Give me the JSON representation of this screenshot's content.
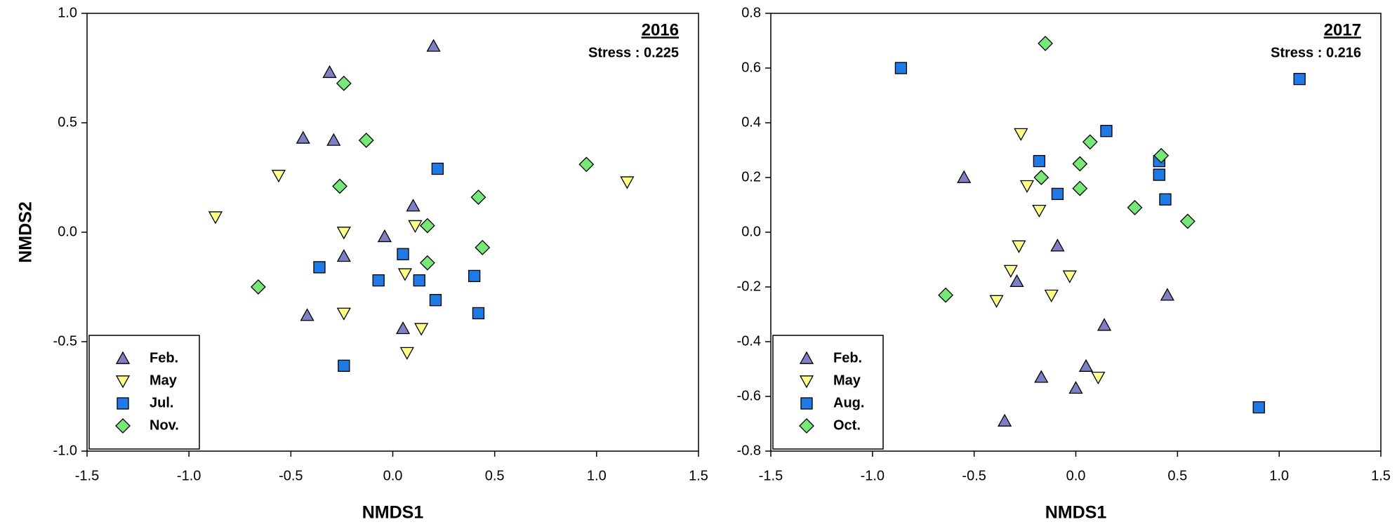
{
  "chart_data": [
    {
      "type": "scatter",
      "title": "2016",
      "subtitle": "Stress : 0.225",
      "x_label": "NMDS1",
      "y_label": "NMDS2",
      "xlim": [
        -1.5,
        1.5
      ],
      "ylim": [
        -1,
        1
      ],
      "xticks": [
        -1.5,
        {
          "value": -1,
          "label": "-1.0"
        },
        -0.5,
        {
          "value": 0,
          "label": "0.0"
        },
        0.5,
        {
          "value": 1,
          "label": "1.0"
        },
        1.5
      ],
      "yticks": [
        {
          "value": -1,
          "label": "-1.0"
        },
        -0.5,
        {
          "value": 0,
          "label": "0.0"
        },
        0.5,
        {
          "value": 1,
          "label": "1.0"
        }
      ],
      "legend": "lower left",
      "series": [
        {
          "name": "Feb.",
          "color": "#7f7fc4",
          "marker": "triangle-up",
          "x": [
            0.2,
            -0.31,
            -0.44,
            -0.29,
            0.1,
            -0.04,
            -0.24,
            -0.42,
            0.05
          ],
          "values": [
            0.85,
            0.73,
            0.43,
            0.42,
            0.12,
            -0.02,
            -0.11,
            -0.38,
            -0.44
          ]
        },
        {
          "name": "May",
          "color": "#ffff88",
          "marker": "triangle-down",
          "x": [
            -0.87,
            -0.56,
            -0.24,
            0.11,
            0.06,
            -0.24,
            0.14,
            0.07,
            1.15
          ],
          "values": [
            0.07,
            0.26,
            0.0,
            0.03,
            -0.19,
            -0.37,
            -0.44,
            -0.55,
            0.23
          ]
        },
        {
          "name": "Jul.",
          "color": "#1f7ae6",
          "marker": "square",
          "x": [
            0.22,
            -0.36,
            0.05,
            -0.07,
            0.13,
            0.21,
            0.4,
            0.42,
            -0.24
          ],
          "values": [
            0.29,
            -0.16,
            -0.1,
            -0.22,
            -0.22,
            -0.31,
            -0.2,
            -0.37,
            -0.61
          ]
        },
        {
          "name": "Nov.",
          "color": "#77e877",
          "marker": "diamond",
          "x": [
            -0.24,
            -0.13,
            -0.26,
            0.95,
            0.42,
            0.17,
            0.17,
            0.44,
            -0.66
          ],
          "values": [
            0.68,
            0.42,
            0.21,
            0.31,
            0.16,
            0.03,
            -0.14,
            -0.07,
            -0.25
          ]
        }
      ]
    },
    {
      "type": "scatter",
      "title": "2017",
      "subtitle": "Stress : 0.216",
      "x_label": "NMDS1",
      "xlim": [
        -1.5,
        1.5
      ],
      "ylim": [
        -0.8,
        0.8
      ],
      "xticks": [
        -1.5,
        {
          "value": -1,
          "label": "-1.0"
        },
        -0.5,
        {
          "value": 0,
          "label": "0.0"
        },
        0.5,
        {
          "value": 1,
          "label": "1.0"
        },
        1.5
      ],
      "yticks": [
        -0.8,
        -0.6,
        -0.4,
        -0.2,
        {
          "value": 0,
          "label": "0.0"
        },
        0.2,
        0.4,
        0.6,
        0.8
      ],
      "legend": "lower left",
      "series": [
        {
          "name": "Feb.",
          "color": "#7f7fc4",
          "marker": "triangle-up",
          "x": [
            -0.55,
            -0.29,
            -0.09,
            0.45,
            0.14,
            0.05,
            -0.17,
            0.0,
            -0.35
          ],
          "values": [
            0.2,
            -0.18,
            -0.05,
            -0.23,
            -0.34,
            -0.49,
            -0.53,
            -0.57,
            -0.69
          ]
        },
        {
          "name": "May",
          "color": "#ffff88",
          "marker": "triangle-down",
          "x": [
            -0.27,
            -0.24,
            -0.18,
            -0.28,
            -0.32,
            -0.39,
            -0.12,
            -0.03,
            0.11
          ],
          "values": [
            0.36,
            0.17,
            0.08,
            -0.05,
            -0.14,
            -0.25,
            -0.23,
            -0.16,
            -0.53
          ]
        },
        {
          "name": "Aug.",
          "color": "#1f7ae6",
          "marker": "square",
          "x": [
            -0.86,
            1.1,
            -0.18,
            -0.09,
            0.15,
            0.41,
            0.41,
            0.44,
            0.9
          ],
          "values": [
            0.6,
            0.56,
            0.26,
            0.14,
            0.37,
            0.26,
            0.21,
            0.12,
            -0.64
          ]
        },
        {
          "name": "Oct.",
          "color": "#77e877",
          "marker": "diamond",
          "x": [
            -0.15,
            0.07,
            0.02,
            -0.17,
            0.02,
            0.42,
            0.29,
            0.55,
            -0.64
          ],
          "values": [
            0.69,
            0.33,
            0.25,
            0.2,
            0.16,
            0.28,
            0.09,
            0.04,
            -0.23
          ]
        }
      ]
    }
  ]
}
